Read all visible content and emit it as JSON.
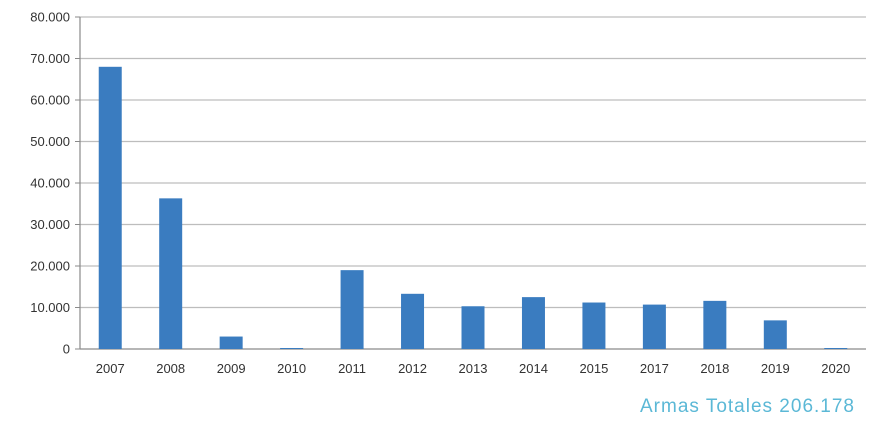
{
  "chart_data": {
    "type": "bar",
    "categories": [
      "2007",
      "2008",
      "2009",
      "2010",
      "2011",
      "2012",
      "2013",
      "2014",
      "2015",
      "2017",
      "2018",
      "2019",
      "2020"
    ],
    "values": [
      68000,
      36300,
      3000,
      100,
      19000,
      13300,
      10300,
      12500,
      11200,
      10700,
      11600,
      6900,
      200
    ],
    "y_ticks": [
      "0",
      "10.000",
      "20.000",
      "30.000",
      "40.000",
      "50.000",
      "60.000",
      "70.000",
      "80.000"
    ],
    "ylim": [
      0,
      80000
    ],
    "grid": true,
    "legend": "none",
    "bar_color": "#3A7CC0",
    "title": "",
    "xlabel": "",
    "ylabel": ""
  },
  "footer": {
    "total_label": "Armas Totales 206.178",
    "color": "#5BB8D6"
  }
}
